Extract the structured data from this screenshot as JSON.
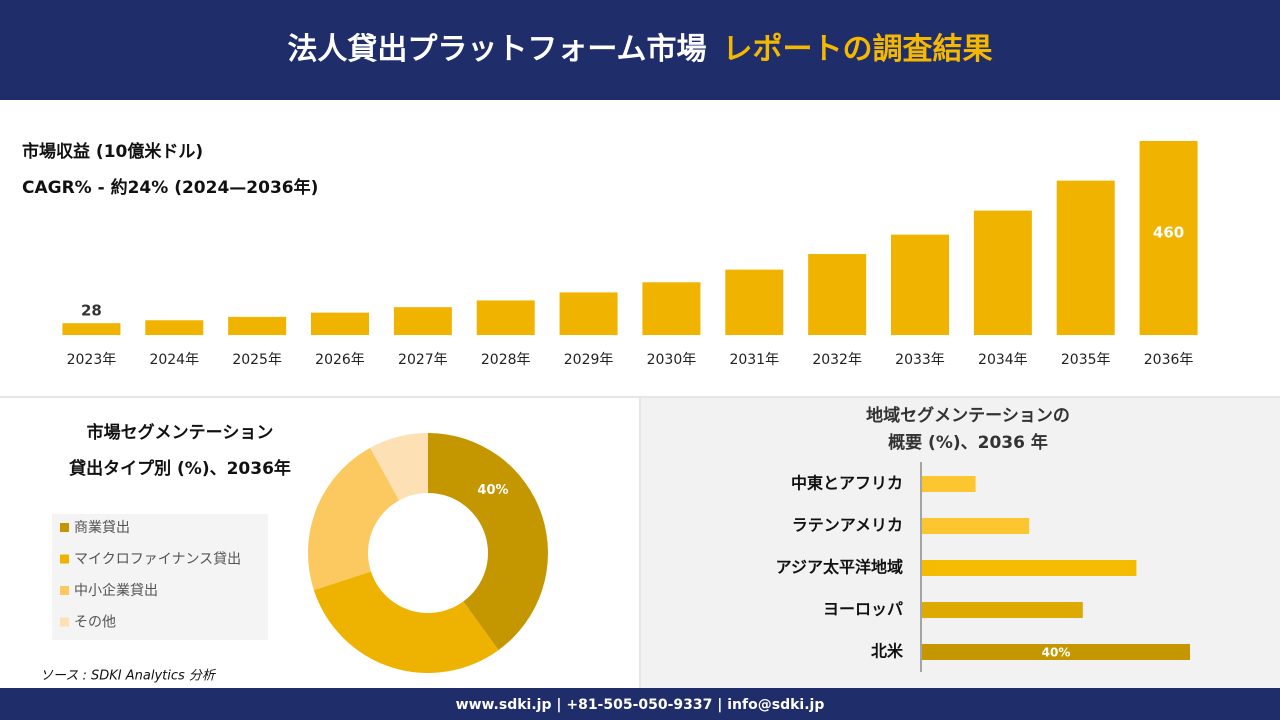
{
  "header": {
    "title": "法人貸出プラットフォーム市場",
    "highlight": "レポートの調査結果"
  },
  "revenue_label": "市場収益 (10億米ドル)",
  "cagr": "CAGR% - 約24% (2024—2036年)",
  "source": "ソース : SDKI Analytics 分析",
  "footer": "www.sdki.jp | +81-505-050-9337 | info@sdki.jp",
  "chart_data": [
    {
      "type": "bar",
      "categories": [
        "2023年",
        "2024年",
        "2025年",
        "2026年",
        "2027年",
        "2028年",
        "2029年",
        "2030年",
        "2031年",
        "2032年",
        "2033年",
        "2034年",
        "2035年",
        "2036年"
      ],
      "values": [
        28,
        35,
        43,
        53,
        66,
        82,
        101,
        125,
        155,
        192,
        238,
        295,
        366,
        460
      ],
      "value_labels": [
        "28",
        null,
        null,
        null,
        null,
        null,
        null,
        null,
        null,
        null,
        null,
        null,
        null,
        "460"
      ],
      "color": "#f0b400"
    },
    {
      "type": "donut",
      "title": [
        "市場セグメンテーション",
        "貸出タイプ別 (%)、2036年"
      ],
      "categories": [
        "商業貸出",
        "マイクロファイナンス貸出",
        "中小企業貸出",
        "その他"
      ],
      "values": [
        40,
        30,
        22,
        8
      ],
      "value_labels": [
        "40%",
        null,
        null,
        null
      ],
      "colors": [
        "#c49600",
        "#eeb200",
        "#fcc860",
        "#fde0b4"
      ]
    },
    {
      "type": "hbar",
      "title": [
        "地域セグメンテーションの",
        "概要 (%)、2036 年"
      ],
      "categories": [
        "中東とアフリカ",
        "ラテンアメリカ",
        "アジア太平洋地域",
        "ヨーロッパ",
        "北米"
      ],
      "values": [
        8,
        16,
        32,
        24,
        40
      ],
      "value_labels": [
        null,
        null,
        null,
        null,
        "40%"
      ],
      "colors": [
        "#fcc630",
        "#fcc630",
        "#f5bb00",
        "#dcaa00",
        "#c49600"
      ]
    }
  ]
}
